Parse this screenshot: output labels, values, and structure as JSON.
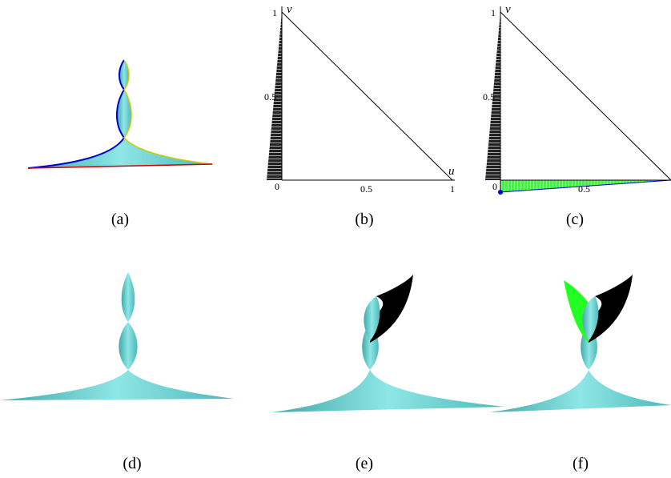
{
  "panels": [
    {
      "label": "(a)"
    },
    {
      "label": "(b)",
      "axes": {
        "v_label": "v",
        "u_label": "u",
        "v_ticks": [
          "1",
          "0.5"
        ],
        "u_ticks": [
          "0",
          "0.5",
          "1"
        ]
      }
    },
    {
      "label": "(c)",
      "axes": {
        "v_label": "v",
        "v_ticks": [
          "1",
          "0.5"
        ],
        "u_ticks": [
          "0",
          "0.5"
        ]
      }
    },
    {
      "label": "(d)"
    },
    {
      "label": "(e)"
    },
    {
      "label": "(f)"
    }
  ]
}
